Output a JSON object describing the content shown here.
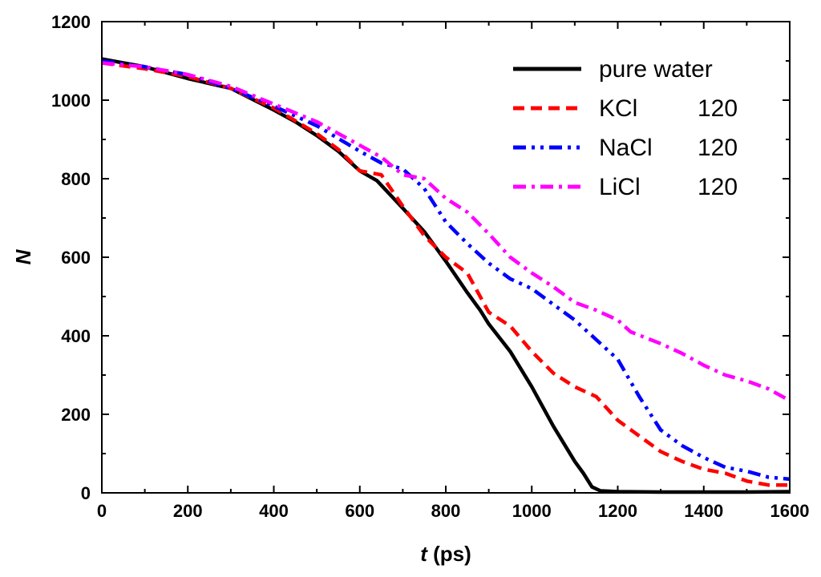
{
  "chart_data": {
    "type": "line",
    "xlabel_var": "t",
    "xlabel_unit": " (ps)",
    "ylabel": "N",
    "xlim": [
      0,
      1600
    ],
    "ylim": [
      0,
      1200
    ],
    "xticks": [
      0,
      200,
      400,
      600,
      800,
      1000,
      1200,
      1400,
      1600
    ],
    "yticks": [
      0,
      200,
      400,
      600,
      800,
      1000,
      1200
    ],
    "legend_position": "top-right",
    "series": [
      {
        "name": "pure water",
        "legend_name": "pure water",
        "legend_value": "",
        "color": "#000000",
        "dash": "solid",
        "points": [
          [
            0,
            1105
          ],
          [
            100,
            1085
          ],
          [
            200,
            1055
          ],
          [
            300,
            1030
          ],
          [
            400,
            975
          ],
          [
            450,
            945
          ],
          [
            500,
            910
          ],
          [
            550,
            870
          ],
          [
            600,
            820
          ],
          [
            640,
            795
          ],
          [
            700,
            725
          ],
          [
            750,
            665
          ],
          [
            800,
            590
          ],
          [
            850,
            510
          ],
          [
            880,
            465
          ],
          [
            900,
            430
          ],
          [
            950,
            360
          ],
          [
            1000,
            270
          ],
          [
            1050,
            170
          ],
          [
            1100,
            80
          ],
          [
            1120,
            50
          ],
          [
            1140,
            15
          ],
          [
            1160,
            5
          ],
          [
            1200,
            3
          ],
          [
            1300,
            2
          ],
          [
            1400,
            2
          ],
          [
            1500,
            2
          ],
          [
            1600,
            3
          ]
        ]
      },
      {
        "name": "KCl 120",
        "legend_name": "KCl",
        "legend_value": "120",
        "color": "#ff0000",
        "dash": "dash",
        "points": [
          [
            0,
            1095
          ],
          [
            100,
            1080
          ],
          [
            200,
            1060
          ],
          [
            300,
            1030
          ],
          [
            400,
            980
          ],
          [
            500,
            915
          ],
          [
            550,
            875
          ],
          [
            600,
            820
          ],
          [
            650,
            810
          ],
          [
            700,
            730
          ],
          [
            750,
            655
          ],
          [
            800,
            600
          ],
          [
            850,
            560
          ],
          [
            900,
            460
          ],
          [
            950,
            425
          ],
          [
            1000,
            360
          ],
          [
            1050,
            305
          ],
          [
            1100,
            270
          ],
          [
            1150,
            245
          ],
          [
            1200,
            185
          ],
          [
            1250,
            145
          ],
          [
            1300,
            105
          ],
          [
            1350,
            80
          ],
          [
            1400,
            60
          ],
          [
            1450,
            50
          ],
          [
            1500,
            30
          ],
          [
            1550,
            20
          ],
          [
            1600,
            20
          ]
        ]
      },
      {
        "name": "NaCl 120",
        "legend_name": "NaCl",
        "legend_value": "120",
        "color": "#0000ff",
        "dash": "dashdotdot",
        "points": [
          [
            0,
            1100
          ],
          [
            100,
            1085
          ],
          [
            200,
            1065
          ],
          [
            300,
            1030
          ],
          [
            400,
            985
          ],
          [
            500,
            935
          ],
          [
            600,
            870
          ],
          [
            650,
            840
          ],
          [
            700,
            825
          ],
          [
            750,
            775
          ],
          [
            800,
            690
          ],
          [
            850,
            635
          ],
          [
            900,
            585
          ],
          [
            950,
            545
          ],
          [
            1000,
            520
          ],
          [
            1050,
            480
          ],
          [
            1100,
            440
          ],
          [
            1150,
            390
          ],
          [
            1200,
            340
          ],
          [
            1250,
            245
          ],
          [
            1300,
            160
          ],
          [
            1350,
            120
          ],
          [
            1400,
            90
          ],
          [
            1450,
            65
          ],
          [
            1500,
            55
          ],
          [
            1550,
            40
          ],
          [
            1600,
            35
          ]
        ]
      },
      {
        "name": "LiCl 120",
        "legend_name": "LiCl",
        "legend_value": "120",
        "color": "#ff00ff",
        "dash": "dashdot",
        "points": [
          [
            0,
            1095
          ],
          [
            100,
            1085
          ],
          [
            200,
            1065
          ],
          [
            300,
            1035
          ],
          [
            400,
            990
          ],
          [
            500,
            945
          ],
          [
            600,
            885
          ],
          [
            650,
            855
          ],
          [
            700,
            810
          ],
          [
            750,
            800
          ],
          [
            800,
            750
          ],
          [
            850,
            715
          ],
          [
            900,
            660
          ],
          [
            950,
            600
          ],
          [
            1000,
            560
          ],
          [
            1050,
            525
          ],
          [
            1100,
            485
          ],
          [
            1150,
            465
          ],
          [
            1200,
            440
          ],
          [
            1230,
            410
          ],
          [
            1300,
            380
          ],
          [
            1350,
            355
          ],
          [
            1400,
            325
          ],
          [
            1450,
            300
          ],
          [
            1500,
            285
          ],
          [
            1550,
            265
          ],
          [
            1600,
            235
          ]
        ]
      }
    ]
  }
}
